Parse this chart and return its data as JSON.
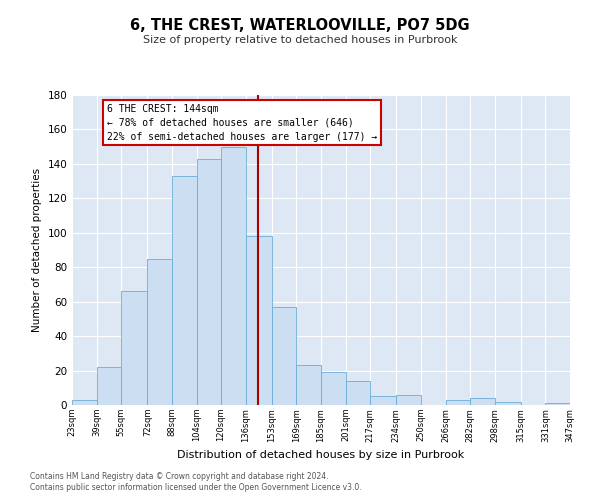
{
  "title": "6, THE CREST, WATERLOOVILLE, PO7 5DG",
  "subtitle": "Size of property relative to detached houses in Purbrook",
  "xlabel": "Distribution of detached houses by size in Purbrook",
  "ylabel": "Number of detached properties",
  "footnote1": "Contains HM Land Registry data © Crown copyright and database right 2024.",
  "footnote2": "Contains public sector information licensed under the Open Government Licence v3.0.",
  "bin_labels": [
    "23sqm",
    "39sqm",
    "55sqm",
    "72sqm",
    "88sqm",
    "104sqm",
    "120sqm",
    "136sqm",
    "153sqm",
    "169sqm",
    "185sqm",
    "201sqm",
    "217sqm",
    "234sqm",
    "250sqm",
    "266sqm",
    "282sqm",
    "298sqm",
    "315sqm",
    "331sqm",
    "347sqm"
  ],
  "bin_edges": [
    23,
    39,
    55,
    72,
    88,
    104,
    120,
    136,
    153,
    169,
    185,
    201,
    217,
    234,
    250,
    266,
    282,
    298,
    315,
    331,
    347
  ],
  "bar_heights": [
    3,
    22,
    66,
    85,
    133,
    143,
    150,
    98,
    57,
    23,
    19,
    14,
    5,
    6,
    0,
    3,
    4,
    2,
    0,
    1
  ],
  "bar_color": "#ccdff2",
  "bar_edge_color": "#6aaed6",
  "vline_x": 144,
  "vline_color": "#aa0000",
  "annotation_title": "6 THE CREST: 144sqm",
  "annotation_line1": "← 78% of detached houses are smaller (646)",
  "annotation_line2": "22% of semi-detached houses are larger (177) →",
  "annotation_box_color": "#ffffff",
  "annotation_box_edge_color": "#cc0000",
  "ylim": [
    0,
    180
  ],
  "yticks": [
    0,
    20,
    40,
    60,
    80,
    100,
    120,
    140,
    160,
    180
  ],
  "bg_color": "#dde8f4"
}
